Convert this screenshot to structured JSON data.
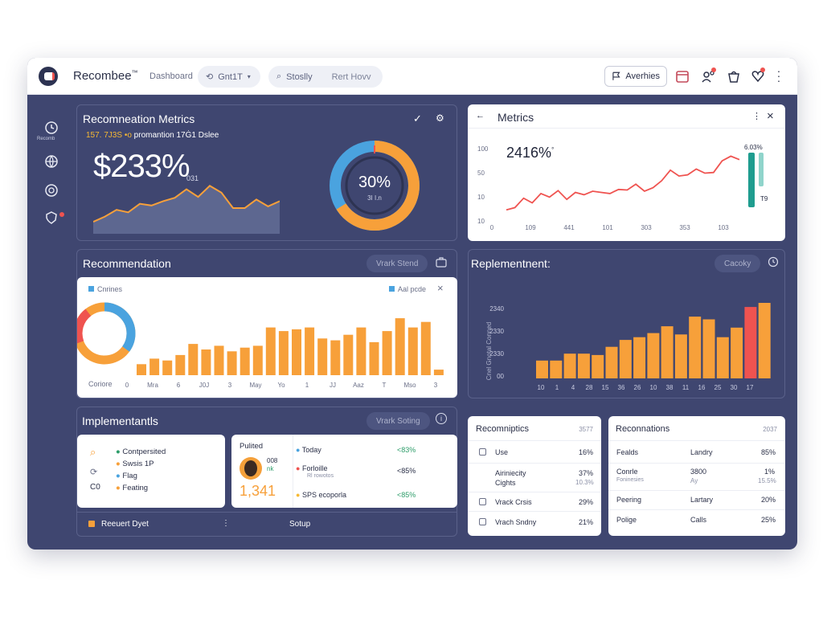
{
  "header": {
    "app_name": "Recombee",
    "app_mark": "™",
    "nav_dashboard": "Dashboard",
    "select_label": "Gnt1T",
    "search_label": "Stoslly",
    "search_hint": "Rert Hovv",
    "archives_label": "Averhies"
  },
  "sidebar": {
    "items": [
      {
        "label": "Recomb"
      }
    ]
  },
  "metrics_panel": {
    "title": "Recomneation Metrics",
    "subtitle_highlight": "157. 7J3S",
    "subtitle_rest": "promantion 17Ġ1 Dslee",
    "big_value": "$233%",
    "big_suffix": "031",
    "donut_value": "30%",
    "donut_label": "3I I.n",
    "area_values": [
      14,
      20,
      28,
      25,
      35,
      33,
      38,
      42,
      52,
      43,
      56,
      48,
      30,
      30,
      40,
      32,
      38
    ],
    "donut_share": 0.66
  },
  "metrics_card": {
    "title": "Metrics",
    "value": "2416%",
    "value_sup": "°",
    "callout": "6.03%",
    "callout_label": "T9",
    "y_ticks": [
      "100",
      "50",
      "10",
      "10"
    ],
    "x_ticks": [
      "0",
      "109",
      "441",
      "101",
      "303",
      "353",
      "103"
    ],
    "line_values": [
      12,
      16,
      32,
      24,
      40,
      34,
      45,
      30,
      42,
      38,
      44,
      42,
      40,
      47,
      46,
      56,
      44,
      50,
      62,
      80,
      70,
      72,
      82,
      75,
      76,
      96,
      104,
      98
    ]
  },
  "recommendation_panel": {
    "title": "Recommendation",
    "chip": "Vrark Stend",
    "legend_left": "Cnrines",
    "legend_right": "Aal pcde",
    "donut_left_label": "Coriore",
    "x_ticks": [
      "0",
      "Mra",
      "6",
      "J0J",
      "3",
      "May",
      "Yo",
      "1",
      "JJ",
      "Aaz",
      "T",
      "Mso",
      "3"
    ],
    "bars": [
      12,
      18,
      16,
      22,
      34,
      28,
      32,
      26,
      30,
      32,
      52,
      48,
      50,
      52,
      40,
      38,
      44,
      52,
      36,
      48,
      62,
      52,
      58,
      6
    ]
  },
  "replenishment_panel": {
    "title": "Replementnent:",
    "chip": "Cacoky",
    "y_axis_label": "Cnel Gnotal Conned",
    "y_ticks": [
      "2340",
      "2330",
      "2330",
      "00"
    ],
    "x_ticks": [
      "10",
      "1",
      "4",
      "28",
      "15",
      "36",
      "26",
      "10",
      "38",
      "11",
      "16",
      "25",
      "30",
      "17"
    ],
    "bars": [
      26,
      26,
      36,
      36,
      34,
      46,
      56,
      60,
      66,
      76,
      64,
      90,
      86,
      60,
      74,
      104,
      110
    ]
  },
  "implementation_panel": {
    "title": "Implementantls",
    "chip": "Vrark Soting",
    "list": [
      "Contpersited",
      "Swsis 1P",
      "Flag",
      "Feating"
    ],
    "side_label": "C0",
    "published_title": "Pulited",
    "published_meta1": "008",
    "published_meta2": "nk",
    "published_value": "1,341",
    "today_label": "Today",
    "today_value": "<83%",
    "item2_label": "Forloille",
    "item2_sub": "Rl rowotos",
    "item2_value": "<85%",
    "item3_label": "SPS ecoporla",
    "item3_value": "<85%",
    "footer_label": "Reeuert Dyet",
    "footer_action": "Sotup"
  },
  "recommendations_table_a": {
    "title": "Recomniptics",
    "count": "3577",
    "rows": [
      {
        "label": "Use",
        "value": "16%"
      },
      {
        "label": "Airiniecity",
        "sublabel": "Cights",
        "value": "37%",
        "subvalue": "10.3%"
      },
      {
        "label": "Vrack Crsis",
        "value": "29%"
      },
      {
        "label": "Vrach Sndny",
        "value": "21%"
      }
    ]
  },
  "recommendations_table_b": {
    "title": "Reconnations",
    "count": "2037",
    "rows": [
      {
        "label": "Fealds",
        "mid": "Landry",
        "value": "85%"
      },
      {
        "label": "Conrle",
        "sublabel": "Foninesies",
        "mid": "3800",
        "midsub": "Ay",
        "value": "1%",
        "subvalue": "15.5%"
      },
      {
        "label": "Peering",
        "mid": "Lartary",
        "value": "20%"
      },
      {
        "label": "Polige",
        "mid": "Calls",
        "value": "25%"
      }
    ]
  },
  "colors": {
    "navy": "#3f4670",
    "orange": "#f7a03a",
    "red": "#ef5350",
    "blue": "#4aa3df",
    "teal": "#2fb9a8",
    "chart_area": "#5d6790"
  }
}
